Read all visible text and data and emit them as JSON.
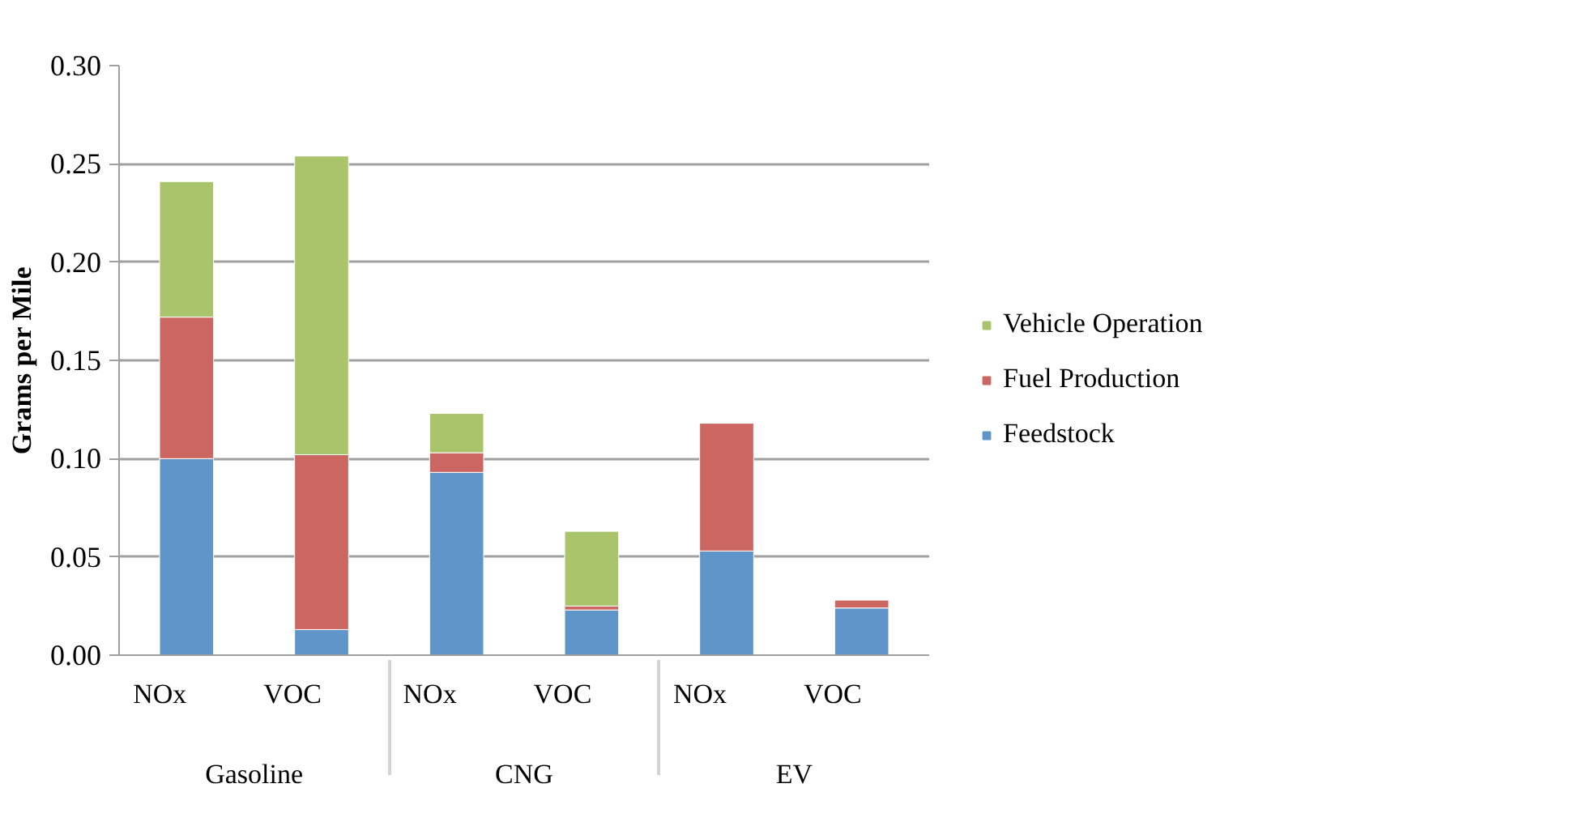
{
  "chart_data": {
    "type": "bar",
    "stacked": true,
    "ylabel": "Grams per Mile",
    "categories": [
      [
        "Gasoline",
        "NOx"
      ],
      [
        null,
        "VOC"
      ],
      [
        "CNG",
        "NOx"
      ],
      [
        null,
        "VOC"
      ],
      [
        "EV",
        "NOx"
      ],
      [
        null,
        "VOC"
      ]
    ],
    "series": [
      {
        "name": "Feedstock",
        "color": "#5f95c9",
        "values": [
          0.1,
          0.013,
          0.093,
          0.023,
          0.053,
          0.024
        ]
      },
      {
        "name": "Fuel Production",
        "color": "#cc6660",
        "values": [
          0.072,
          0.089,
          0.01,
          0.002,
          0.065,
          0.004
        ]
      },
      {
        "name": "Vehicle Operation",
        "color": "#aac46c",
        "values": [
          0.069,
          0.152,
          0.02,
          0.038,
          0.0,
          0.0
        ]
      }
    ],
    "ylim": [
      0,
      0.3
    ],
    "yticks": [
      {
        "value": 0,
        "label": "0.00"
      },
      {
        "value": 0.05,
        "label": "0.05"
      },
      {
        "value": 0.1,
        "label": "0.10"
      },
      {
        "value": 0.15,
        "label": "0.15"
      },
      {
        "value": 0.2,
        "label": "0.20"
      },
      {
        "value": 0.25,
        "label": "0.25"
      },
      {
        "value": 0.3,
        "label": "0.30"
      }
    ],
    "grid": "y",
    "legend": "right"
  }
}
